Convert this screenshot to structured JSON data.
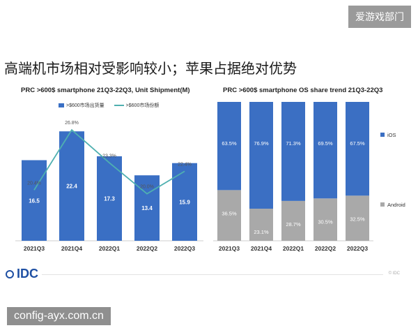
{
  "top_tag": "爱游戏部门",
  "headline": "高端机市场相对受影响较小；苹果占据绝对优势",
  "watermark": "config-ayx.com.cn",
  "logo": {
    "text": "IDC",
    "mark": "idc-logo-icon"
  },
  "footer_text": "© IDC",
  "colors": {
    "bar": "#3a6fc4",
    "line": "#4fb0b0",
    "ios": "#3b6fc3",
    "android": "#a9a9a9"
  },
  "chart_data": [
    {
      "type": "bar",
      "title": "PRC >600$ smartphone 21Q3-22Q3, Unit Shipment(M)",
      "categories": [
        "2021Q3",
        "2021Q4",
        "2022Q1",
        "2022Q2",
        "2022Q3"
      ],
      "series": [
        {
          "name": ">$600市场出货量",
          "values": [
            16.5,
            22.4,
            17.3,
            13.4,
            15.9
          ],
          "kind": "bar"
        },
        {
          "name": ">$600市场份额",
          "values": [
            20.4,
            26.8,
            23.3,
            20.0,
            22.4
          ],
          "kind": "line",
          "unit": "%"
        }
      ],
      "bar_ylim": [
        0,
        25
      ],
      "line_ylim": [
        15,
        28
      ],
      "legend": "top"
    },
    {
      "type": "bar",
      "stacked": true,
      "percent": true,
      "title": "PRC >600$ smartphone OS share trend 21Q3-22Q3",
      "categories": [
        "2021Q3",
        "2021Q4",
        "2022Q1",
        "2022Q2",
        "2022Q3"
      ],
      "series": [
        {
          "name": "iOS",
          "values": [
            63.5,
            76.9,
            71.3,
            69.5,
            67.5
          ]
        },
        {
          "name": "Android",
          "values": [
            36.5,
            23.1,
            28.7,
            30.5,
            32.5
          ]
        }
      ],
      "ylim": [
        0,
        100
      ],
      "legend": "right"
    }
  ]
}
